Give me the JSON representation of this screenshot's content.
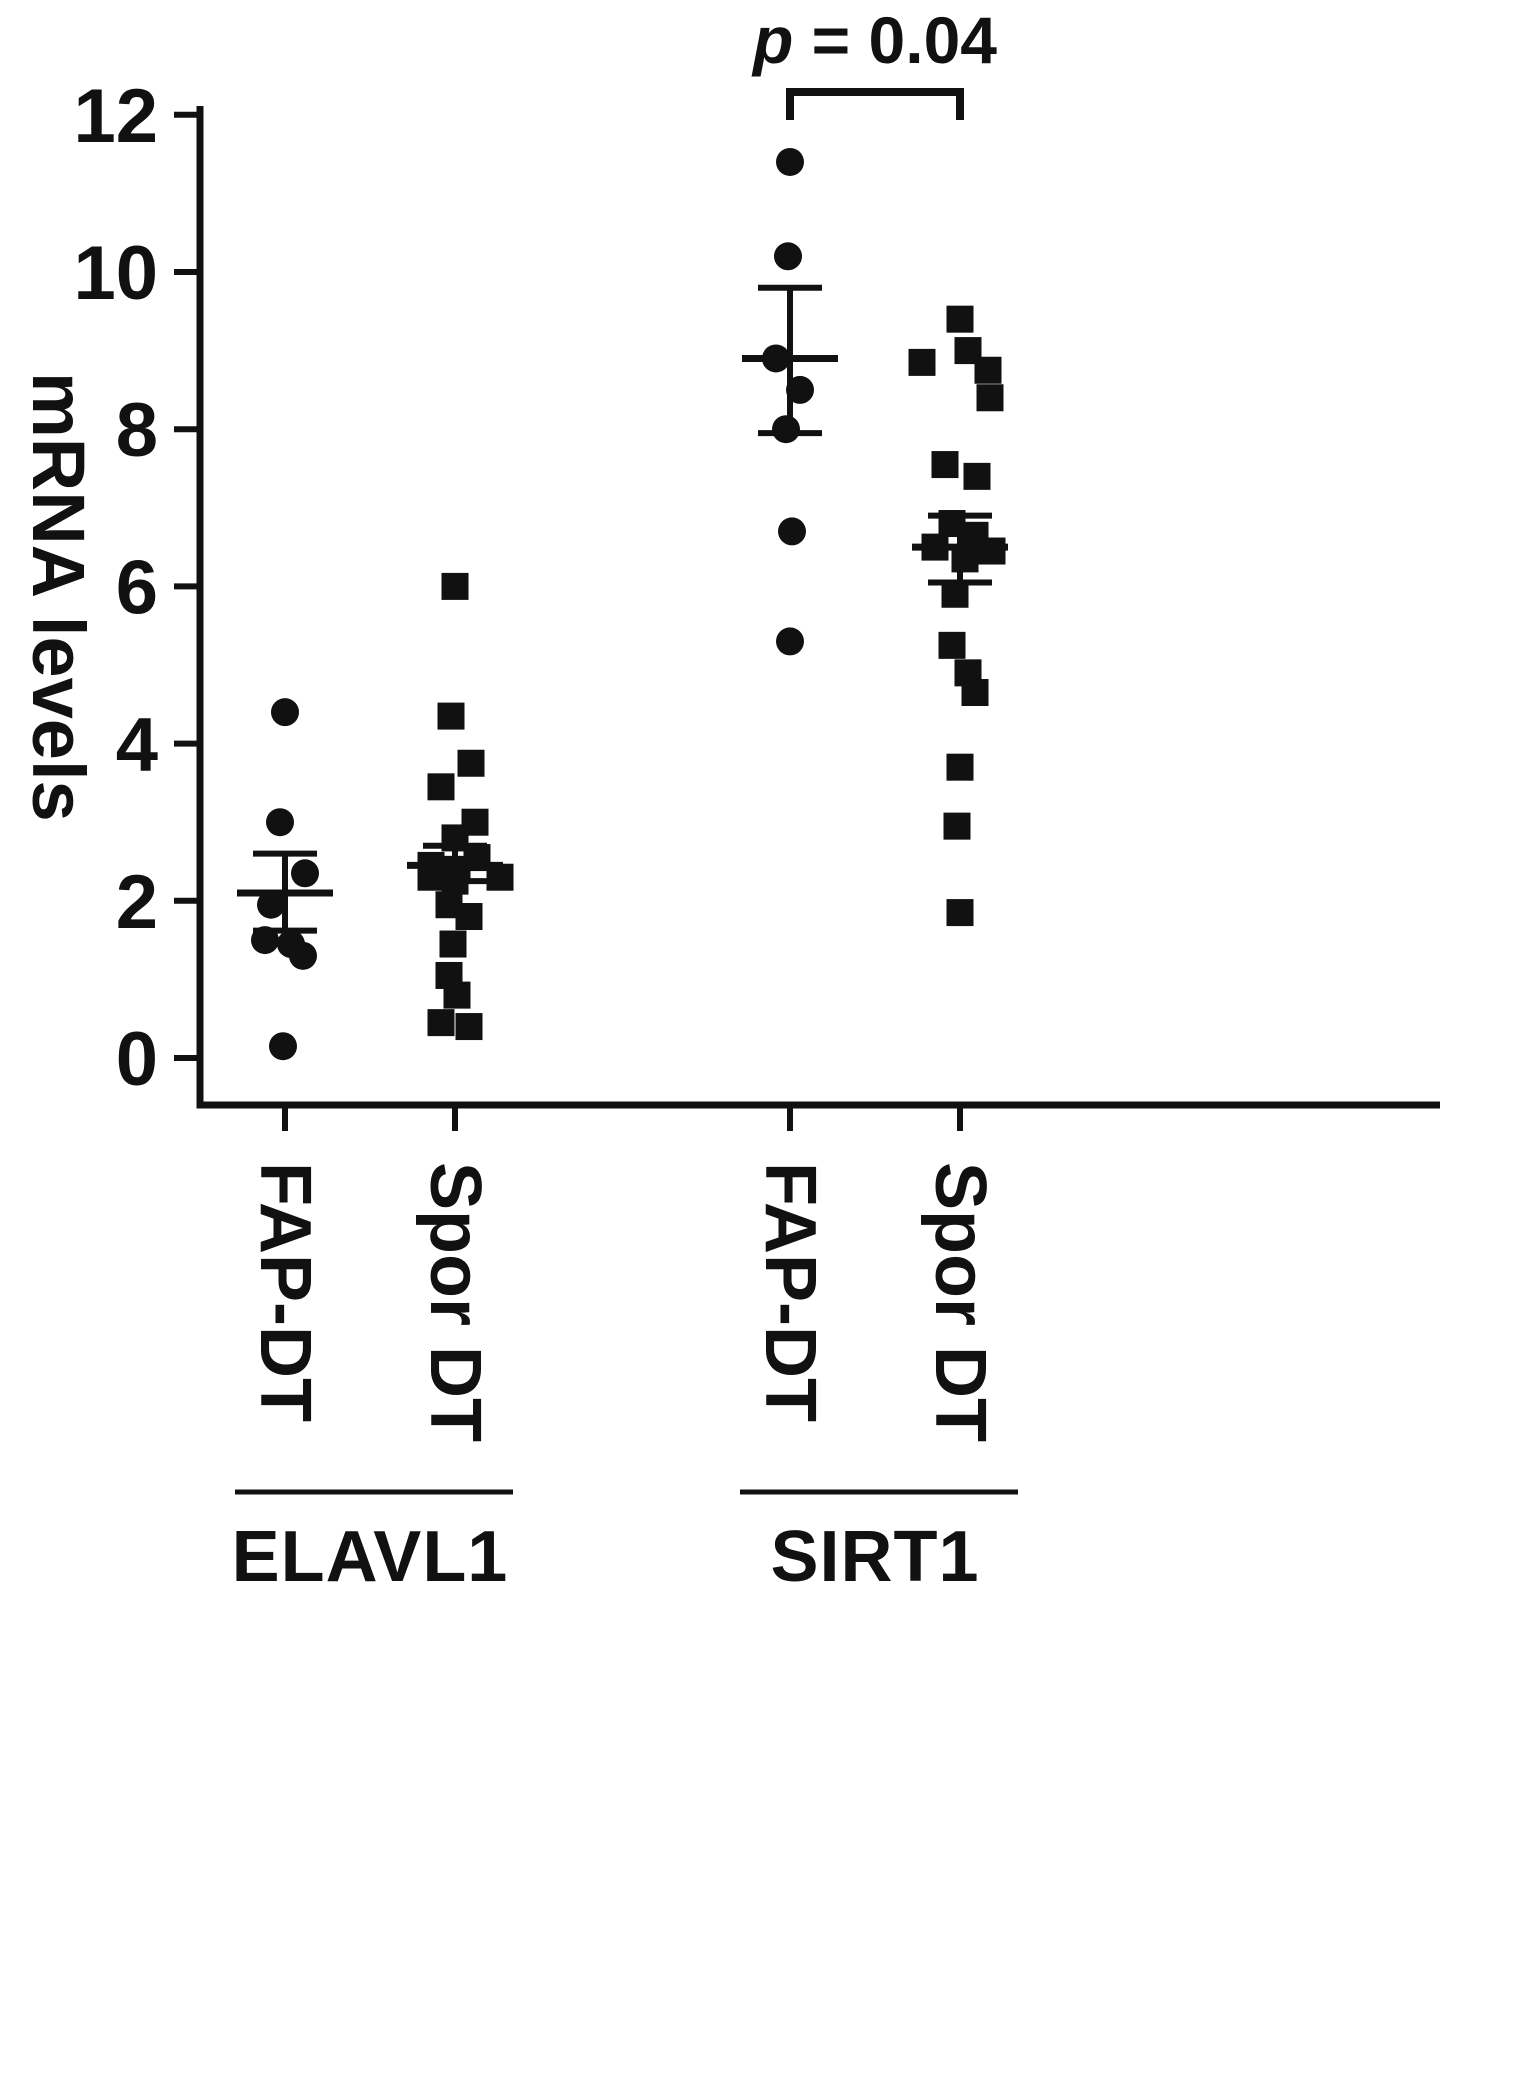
{
  "figure": {
    "background": "#ffffff",
    "ink_color": "#111111"
  },
  "chart_data": {
    "type": "scatter",
    "title": "",
    "ylabel": "mRNA levels",
    "xlabel": "",
    "ylim": [
      0,
      12
    ],
    "yticks": [
      12,
      10,
      8,
      6,
      4,
      2,
      0
    ],
    "grid": false,
    "legend": "none",
    "significance": {
      "symbol": "p",
      "comparison_text": " = 0.04",
      "full_text": "p = 0.04",
      "bracket_between_columns": [
        2,
        3
      ]
    },
    "groups": [
      {
        "gene": "ELAVL1",
        "columns": [
          {
            "label": "FAP-DT",
            "marker": "circle",
            "values": [
              4.4,
              3.0,
              2.35,
              1.95,
              1.5,
              1.45,
              1.3,
              0.15
            ],
            "x_jitter": [
              0,
              -5,
              20,
              -14,
              -20,
              6,
              18,
              -2
            ],
            "mean": 2.1,
            "err_low": 1.62,
            "err_high": 2.6
          },
          {
            "label": "Spor DT",
            "marker": "square",
            "values": [
              6.0,
              4.35,
              3.75,
              3.45,
              3.0,
              2.8,
              2.55,
              2.45,
              2.4,
              2.3,
              2.3,
              2.25,
              1.95,
              1.8,
              1.45,
              1.05,
              0.8,
              0.45,
              0.4
            ],
            "x_jitter": [
              0,
              -4,
              16,
              -14,
              20,
              0,
              22,
              -24,
              2,
              -24,
              45,
              0,
              -6,
              14,
              -2,
              -6,
              2,
              -14,
              14
            ],
            "mean": 2.45,
            "err_low": 2.25,
            "err_high": 2.7
          }
        ]
      },
      {
        "gene": "SIRT1",
        "columns": [
          {
            "label": "FAP-DT",
            "marker": "circle",
            "values": [
              11.4,
              10.2,
              8.9,
              8.5,
              8.0,
              6.7,
              5.3
            ],
            "x_jitter": [
              0,
              -2,
              -14,
              10,
              -4,
              2,
              0
            ],
            "mean": 8.9,
            "err_low": 7.95,
            "err_high": 9.8
          },
          {
            "label": "Spor DT",
            "marker": "square",
            "values": [
              9.4,
              9.0,
              8.85,
              8.75,
              8.4,
              7.55,
              7.4,
              6.8,
              6.65,
              6.5,
              6.45,
              6.35,
              5.9,
              5.25,
              4.9,
              4.65,
              3.7,
              2.95,
              1.85
            ],
            "x_jitter": [
              0,
              8,
              -38,
              28,
              30,
              -15,
              17,
              -8,
              15,
              -25,
              32,
              5,
              -5,
              -8,
              8,
              15,
              0,
              -3,
              0
            ],
            "mean": 6.5,
            "err_low": 6.05,
            "err_high": 6.9
          }
        ]
      }
    ]
  }
}
